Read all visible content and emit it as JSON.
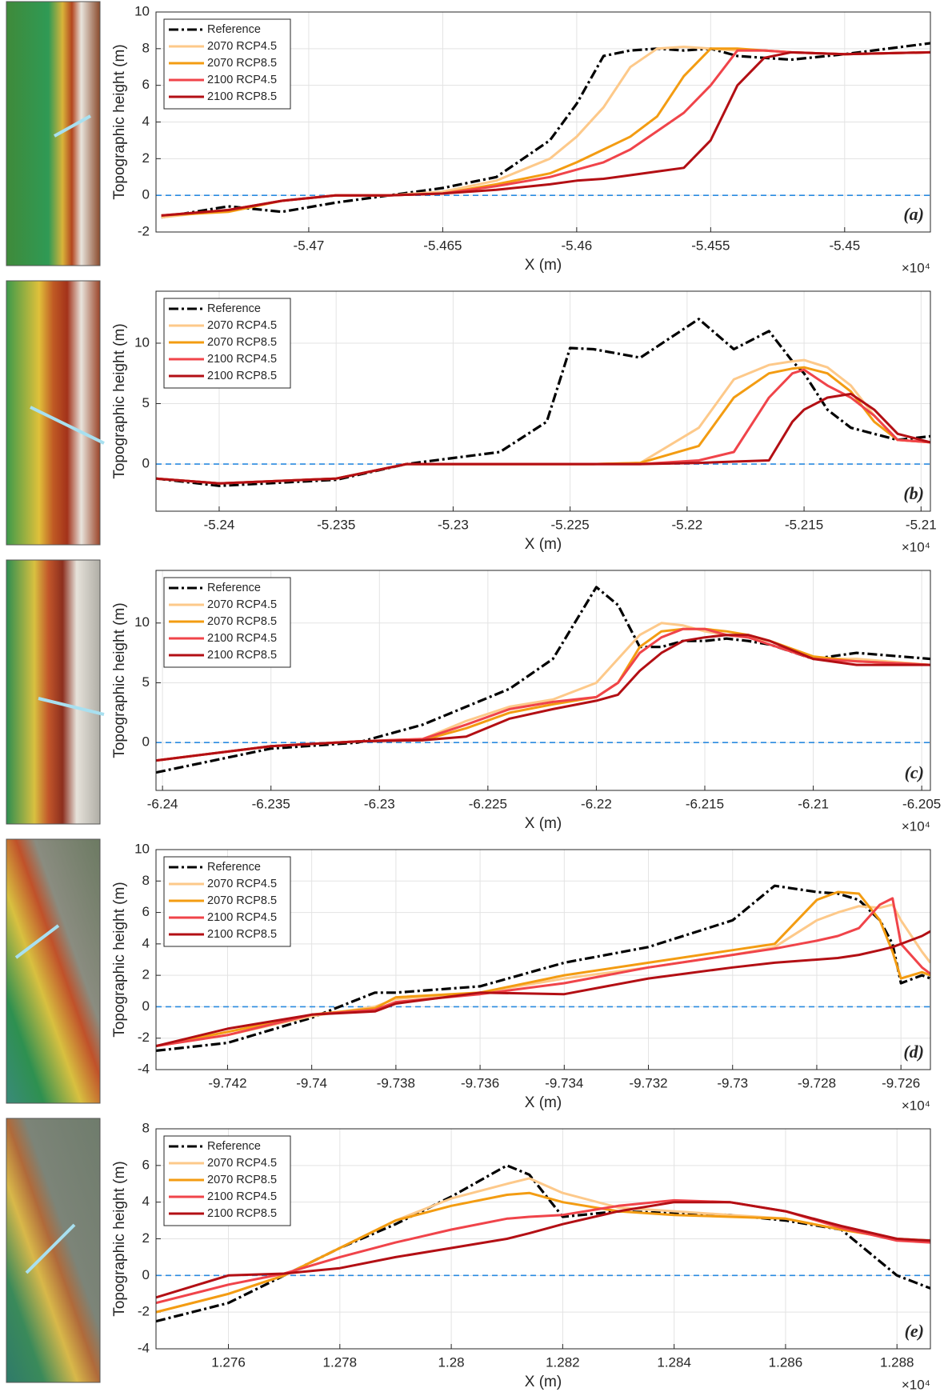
{
  "chart_data": [
    {
      "type": "line",
      "panel_label": "(a)",
      "xlabel": "X (m)",
      "ylabel": "Topographic height (m)",
      "x_scale_label": "×10⁴",
      "xlim": [
        -5.4757,
        -5.4468
      ],
      "xticks": [
        -5.47,
        -5.465,
        -5.46,
        -5.455,
        -5.45
      ],
      "ylim": [
        -2,
        10
      ],
      "yticks": [
        -2,
        0,
        2,
        4,
        6,
        8,
        10
      ],
      "grid": true,
      "legend": "top-left",
      "hline": 0,
      "x": [
        -5.4755,
        -5.473,
        -5.471,
        -5.469,
        -5.467,
        -5.465,
        -5.463,
        -5.461,
        -5.46,
        -5.459,
        -5.458,
        -5.457,
        -5.456,
        -5.455,
        -5.454,
        -5.453,
        -5.452,
        -5.45,
        -5.4468
      ],
      "series": [
        {
          "name": "Reference",
          "color": "#000000",
          "values": [
            -1.2,
            -0.6,
            -0.9,
            -0.4,
            0,
            0.4,
            1.0,
            3.0,
            5.0,
            7.6,
            7.9,
            8.0,
            7.9,
            8.0,
            7.6,
            7.5,
            7.4,
            7.7,
            8.3
          ]
        },
        {
          "name": "2070 RCP4.5",
          "color": "#fdc98a",
          "values": [
            -1.2,
            -0.8,
            -0.3,
            0,
            0,
            0.2,
            0.8,
            2.0,
            3.2,
            4.8,
            7.0,
            8.0,
            8.1,
            8.0,
            7.9,
            7.9,
            7.8,
            7.7,
            7.8
          ]
        },
        {
          "name": "2070 RCP8.5",
          "color": "#f39c12",
          "values": [
            -1.1,
            -0.9,
            -0.3,
            0,
            0,
            0.1,
            0.6,
            1.2,
            1.8,
            2.5,
            3.2,
            4.3,
            6.5,
            8.0,
            8.0,
            7.9,
            7.8,
            7.7,
            7.8
          ]
        },
        {
          "name": "2100 RCP4.5",
          "color": "#f0444a",
          "values": [
            -1.1,
            -0.8,
            -0.3,
            0,
            0,
            0.1,
            0.5,
            1.0,
            1.4,
            1.8,
            2.5,
            3.5,
            4.5,
            6.0,
            7.9,
            7.9,
            7.8,
            7.7,
            7.8
          ]
        },
        {
          "name": "2100 RCP8.5",
          "color": "#b30f14",
          "values": [
            -1.1,
            -0.8,
            -0.3,
            0,
            0,
            0.1,
            0.3,
            0.6,
            0.8,
            0.9,
            1.1,
            1.3,
            1.5,
            3.0,
            6.0,
            7.5,
            7.8,
            7.7,
            7.8
          ]
        }
      ]
    },
    {
      "type": "line",
      "panel_label": "(b)",
      "xlabel": "X (m)",
      "ylabel": "Topographic height (m)",
      "x_scale_label": "×10⁴",
      "xlim": [
        -5.2427,
        -5.2096
      ],
      "xticks": [
        -5.24,
        -5.235,
        -5.23,
        -5.225,
        -5.22,
        -5.215,
        -5.21
      ],
      "ylim": [
        -3.9,
        14.3
      ],
      "yticks": [
        0,
        5,
        10
      ],
      "grid": true,
      "legend": "top-left",
      "hline": 0,
      "x": [
        -5.2427,
        -5.24,
        -5.235,
        -5.232,
        -5.23,
        -5.228,
        -5.226,
        -5.225,
        -5.224,
        -5.222,
        -5.2195,
        -5.218,
        -5.2165,
        -5.2155,
        -5.215,
        -5.214,
        -5.213,
        -5.212,
        -5.211,
        -5.2096
      ],
      "series": [
        {
          "name": "Reference",
          "color": "#000000",
          "values": [
            -1.2,
            -1.8,
            -1.3,
            0,
            0.5,
            1,
            3.5,
            9.6,
            9.5,
            8.8,
            12,
            9.5,
            11,
            8.5,
            7.5,
            4.5,
            3.0,
            2.5,
            2.0,
            2.3
          ]
        },
        {
          "name": "2070 RCP4.5",
          "color": "#fdc98a",
          "values": [
            -1.2,
            -1.6,
            -1.2,
            0,
            0,
            0,
            0,
            0,
            0,
            0.1,
            3,
            7,
            8.2,
            8.5,
            8.6,
            8,
            6.5,
            4,
            2,
            1.8
          ]
        },
        {
          "name": "2070 RCP8.5",
          "color": "#f39c12",
          "values": [
            -1.2,
            -1.6,
            -1.2,
            0,
            0,
            0,
            0,
            0,
            0,
            0.1,
            1.5,
            5.5,
            7.5,
            7.9,
            8.0,
            7.5,
            6.0,
            3.5,
            2,
            1.8
          ]
        },
        {
          "name": "2100 RCP4.5",
          "color": "#f0444a",
          "values": [
            -1.2,
            -1.6,
            -1.2,
            0,
            0,
            0,
            0,
            0,
            0,
            0,
            0.3,
            1,
            5.5,
            7.5,
            7.8,
            6.5,
            5.5,
            4,
            2,
            1.8
          ]
        },
        {
          "name": "2100 RCP8.5",
          "color": "#b30f14",
          "values": [
            -1.2,
            -1.6,
            -1.2,
            0,
            0,
            0,
            0,
            0,
            0,
            0,
            0.1,
            0.2,
            0.3,
            3.5,
            4.5,
            5.5,
            5.8,
            4.5,
            2.5,
            1.8
          ]
        }
      ]
    },
    {
      "type": "line",
      "panel_label": "(c)",
      "xlabel": "X (m)",
      "ylabel": "Topographic height (m)",
      "x_scale_label": "×10⁴",
      "xlim": [
        -6.2403,
        -6.2046
      ],
      "xticks": [
        -6.24,
        -6.235,
        -6.23,
        -6.225,
        -6.22,
        -6.215,
        -6.21,
        -6.205
      ],
      "ylim": [
        -4,
        14.4
      ],
      "yticks": [
        0,
        5,
        10
      ],
      "grid": true,
      "legend": "top-left",
      "hline": 0,
      "x": [
        -6.2403,
        -6.235,
        -6.231,
        -6.228,
        -6.226,
        -6.224,
        -6.222,
        -6.22,
        -6.219,
        -6.218,
        -6.217,
        -6.216,
        -6.215,
        -6.214,
        -6.213,
        -6.212,
        -6.21,
        -6.208,
        -6.2046
      ],
      "series": [
        {
          "name": "Reference",
          "color": "#000000",
          "values": [
            -2.5,
            -0.5,
            0,
            1.5,
            3.0,
            4.5,
            7,
            13,
            11.5,
            8,
            8,
            8.5,
            8.5,
            8.7,
            8.5,
            8.2,
            7,
            7.5,
            7
          ]
        },
        {
          "name": "2070 RCP4.5",
          "color": "#fdc98a",
          "values": [
            -1.5,
            -0.3,
            0.1,
            0.3,
            1.8,
            3,
            3.6,
            5,
            7,
            9,
            10,
            9.8,
            9.3,
            9,
            8.8,
            8.5,
            7,
            7,
            6.5
          ]
        },
        {
          "name": "2070 RCP8.5",
          "color": "#f39c12",
          "values": [
            -1.5,
            -0.3,
            0.1,
            0.2,
            1.2,
            2.5,
            3.2,
            3.8,
            5,
            8,
            9.3,
            9.5,
            9.5,
            9.3,
            9,
            8.5,
            7.2,
            6.8,
            6.5
          ]
        },
        {
          "name": "2100 RCP4.5",
          "color": "#f0444a",
          "values": [
            -1.5,
            -0.3,
            0.1,
            0.3,
            1.5,
            2.8,
            3.4,
            3.8,
            5,
            7.5,
            8.8,
            9.5,
            9.5,
            9,
            8.8,
            8.2,
            7,
            6.8,
            6.5
          ]
        },
        {
          "name": "2100 RCP8.5",
          "color": "#b30f14",
          "values": [
            -1.5,
            -0.3,
            0.1,
            0.2,
            0.5,
            2,
            2.8,
            3.5,
            4,
            6,
            7.5,
            8.5,
            8.8,
            9,
            9,
            8.5,
            7,
            6.5,
            6.5
          ]
        }
      ]
    },
    {
      "type": "line",
      "panel_label": "(d)",
      "xlabel": "X (m)",
      "ylabel": "Topographic height (m)",
      "x_scale_label": "×10⁴",
      "xlim": [
        -9.7437,
        -9.7253
      ],
      "xticks": [
        -9.742,
        -9.74,
        -9.738,
        -9.736,
        -9.734,
        -9.732,
        -9.73,
        -9.728,
        -9.726
      ],
      "ylim": [
        -4,
        10
      ],
      "yticks": [
        -4,
        -2,
        0,
        2,
        4,
        6,
        8,
        10
      ],
      "grid": true,
      "legend": "top-left",
      "hline": 0,
      "x": [
        -9.7437,
        -9.742,
        -9.74,
        -9.7385,
        -9.738,
        -9.736,
        -9.734,
        -9.732,
        -9.73,
        -9.729,
        -9.728,
        -9.7275,
        -9.727,
        -9.7265,
        -9.7262,
        -9.726,
        -9.7255,
        -9.7253
      ],
      "series": [
        {
          "name": "Reference",
          "color": "#000000",
          "values": [
            -2.8,
            -2.3,
            -0.7,
            0.9,
            0.9,
            1.3,
            2.8,
            3.8,
            5.5,
            7.7,
            7.3,
            7.2,
            6.8,
            5.5,
            4,
            1.5,
            2.0,
            1.8
          ]
        },
        {
          "name": "2070 RCP4.5",
          "color": "#fdc98a",
          "values": [
            -2.5,
            -1.8,
            -0.6,
            0,
            0.5,
            0.9,
            1.8,
            2.5,
            3.3,
            3.8,
            5.5,
            6.0,
            6.4,
            6.3,
            6.5,
            5.5,
            3.5,
            2.8
          ]
        },
        {
          "name": "2070 RCP8.5",
          "color": "#f39c12",
          "values": [
            -2.5,
            -1.6,
            -0.5,
            -0.1,
            0.6,
            0.9,
            2.0,
            2.8,
            3.6,
            4.0,
            6.8,
            7.3,
            7.2,
            5.5,
            3.5,
            1.8,
            2.2,
            2.0
          ]
        },
        {
          "name": "2100 RCP4.5",
          "color": "#f0444a",
          "values": [
            -2.5,
            -1.8,
            -0.5,
            -0.2,
            0.3,
            0.8,
            1.5,
            2.5,
            3.3,
            3.7,
            4.2,
            4.5,
            5.0,
            6.5,
            6.9,
            4.0,
            2.5,
            2.1
          ]
        },
        {
          "name": "2100 RCP8.5",
          "color": "#b30f14",
          "values": [
            -2.5,
            -1.4,
            -0.5,
            -0.3,
            0.2,
            0.9,
            0.8,
            1.8,
            2.5,
            2.8,
            3.0,
            3.1,
            3.3,
            3.6,
            3.8,
            4.0,
            4.5,
            4.8
          ]
        }
      ]
    },
    {
      "type": "line",
      "panel_label": "(e)",
      "xlabel": "X (m)",
      "ylabel": "Topographic height (m)",
      "x_scale_label": "×10⁴",
      "xlim": [
        1.2747,
        1.2886
      ],
      "xticks": [
        1.276,
        1.278,
        1.28,
        1.282,
        1.284,
        1.286,
        1.288
      ],
      "ylim": [
        -4,
        8
      ],
      "yticks": [
        -4,
        -2,
        0,
        2,
        4,
        6,
        8
      ],
      "grid": true,
      "legend": "top-left",
      "hline": 0,
      "x": [
        1.2747,
        1.276,
        1.277,
        1.278,
        1.279,
        1.28,
        1.281,
        1.2814,
        1.282,
        1.283,
        1.284,
        1.285,
        1.286,
        1.287,
        1.288,
        1.2886
      ],
      "series": [
        {
          "name": "Reference",
          "color": "#000000",
          "values": [
            -2.5,
            -1.5,
            0,
            1.5,
            2.8,
            4.3,
            6.0,
            5.5,
            3.2,
            3.5,
            3.4,
            3.3,
            3.0,
            2.5,
            0,
            -0.7
          ]
        },
        {
          "name": "2070 RCP4.5",
          "color": "#fdc98a",
          "values": [
            -2.0,
            -1.0,
            0,
            1.5,
            3.0,
            4.2,
            5.0,
            5.3,
            4.5,
            3.7,
            3.5,
            3.3,
            3.1,
            2.5,
            2.0,
            1.9
          ]
        },
        {
          "name": "2070 RCP8.5",
          "color": "#f39c12",
          "values": [
            -2.0,
            -1.0,
            0,
            1.5,
            3.0,
            3.8,
            4.4,
            4.5,
            4.0,
            3.5,
            3.3,
            3.2,
            3.1,
            2.5,
            2.0,
            1.9
          ]
        },
        {
          "name": "2100 RCP4.5",
          "color": "#f0444a",
          "values": [
            -1.5,
            -0.5,
            0.1,
            1.0,
            1.8,
            2.5,
            3.1,
            3.2,
            3.3,
            3.8,
            4.1,
            4.0,
            3.5,
            2.6,
            1.9,
            1.8
          ]
        },
        {
          "name": "2100 RCP8.5",
          "color": "#b30f14",
          "values": [
            -1.2,
            0,
            0.1,
            0.4,
            1.0,
            1.5,
            2.0,
            2.3,
            2.8,
            3.5,
            4.0,
            4.0,
            3.5,
            2.7,
            2.0,
            1.9
          ]
        }
      ]
    }
  ]
}
